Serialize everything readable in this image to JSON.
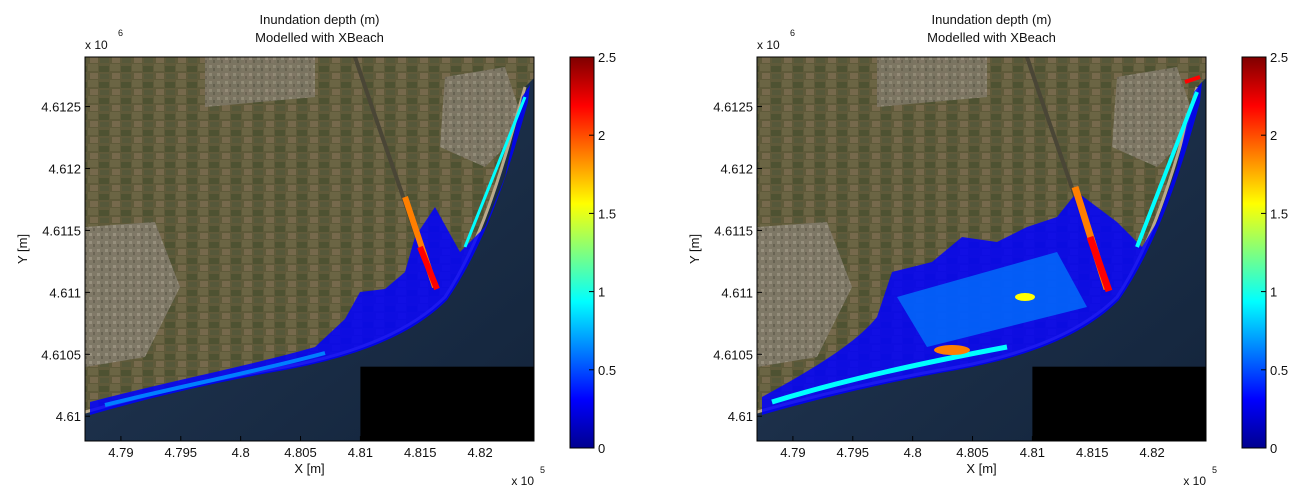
{
  "chart_data": [
    {
      "type": "heatmap",
      "title": "Inundation depth (m)",
      "subtitle": "Modelled with XBeach",
      "xlabel": "X [m]",
      "ylabel": "Y [m]",
      "x_exponent_label": "x 10",
      "x_exponent_power": "5",
      "y_exponent_label": "x 10",
      "y_exponent_power": "6",
      "x_ticks": [
        "4.79",
        "4.795",
        "4.8",
        "4.805",
        "4.81",
        "4.815",
        "4.82"
      ],
      "y_ticks": [
        "4.61",
        "4.6105",
        "4.611",
        "4.6115",
        "4.612",
        "4.6125"
      ],
      "xlim": [
        478700,
        482450
      ],
      "ylim": [
        4609800,
        4612900
      ],
      "colorbar": {
        "min": 0,
        "max": 2.5,
        "ticks": [
          "0",
          "0.5",
          "1",
          "1.5",
          "2",
          "2.5"
        ],
        "colormap": "jet"
      },
      "background": "satellite image",
      "scenario_extent": "narrow"
    },
    {
      "type": "heatmap",
      "title": "Inundation depth (m)",
      "subtitle": "Modelled with XBeach",
      "xlabel": "X [m]",
      "ylabel": "Y [m]",
      "x_exponent_label": "x 10",
      "x_exponent_power": "5",
      "y_exponent_label": "x 10",
      "y_exponent_power": "6",
      "x_ticks": [
        "4.79",
        "4.795",
        "4.8",
        "4.805",
        "4.81",
        "4.815",
        "4.82"
      ],
      "y_ticks": [
        "4.61",
        "4.6105",
        "4.611",
        "4.6115",
        "4.612",
        "4.6125"
      ],
      "xlim": [
        478700,
        482450
      ],
      "ylim": [
        4609800,
        4612900
      ],
      "colorbar": {
        "min": 0,
        "max": 2.5,
        "ticks": [
          "0",
          "0.5",
          "1",
          "1.5",
          "2",
          "2.5"
        ],
        "colormap": "jet"
      },
      "background": "satellite image",
      "scenario_extent": "wide"
    }
  ],
  "colors": {
    "sea": "#1a2d47",
    "land": "#5d5838",
    "urban": "#8a8576",
    "masked": "#000000",
    "jet": [
      "#00008f",
      "#0000ff",
      "#007fff",
      "#00ffff",
      "#7fff7f",
      "#ffff00",
      "#ff7f00",
      "#ff0000",
      "#7f0000"
    ]
  }
}
